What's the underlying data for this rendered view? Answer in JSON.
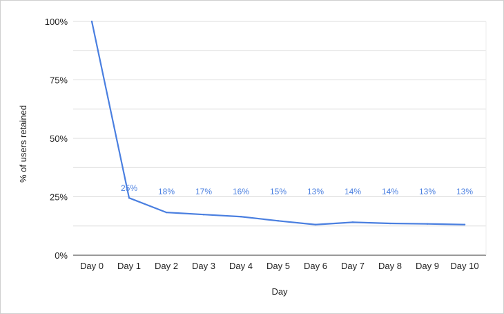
{
  "chart_data": {
    "type": "line",
    "title": "",
    "xlabel": "Day",
    "ylabel": "% of users retained",
    "categories": [
      "Day 0",
      "Day 1",
      "Day 2",
      "Day 3",
      "Day 4",
      "Day 5",
      "Day 6",
      "Day 7",
      "Day 8",
      "Day 9",
      "Day 10"
    ],
    "series": [
      {
        "values": [
          100,
          24.5,
          18.3,
          17.4,
          16.5,
          14.7,
          13.1,
          14.1,
          13.6,
          13.4,
          13.1
        ],
        "data_labels": [
          "",
          "25%",
          "18%",
          "17%",
          "16%",
          "15%",
          "13%",
          "14%",
          "14%",
          "13%",
          "13%"
        ],
        "color": "#4a7fe0"
      }
    ],
    "yticks": [
      "0%",
      "25%",
      "50%",
      "75%",
      "100%"
    ],
    "ylim": [
      0,
      100
    ],
    "grid": true,
    "legend": "none"
  }
}
